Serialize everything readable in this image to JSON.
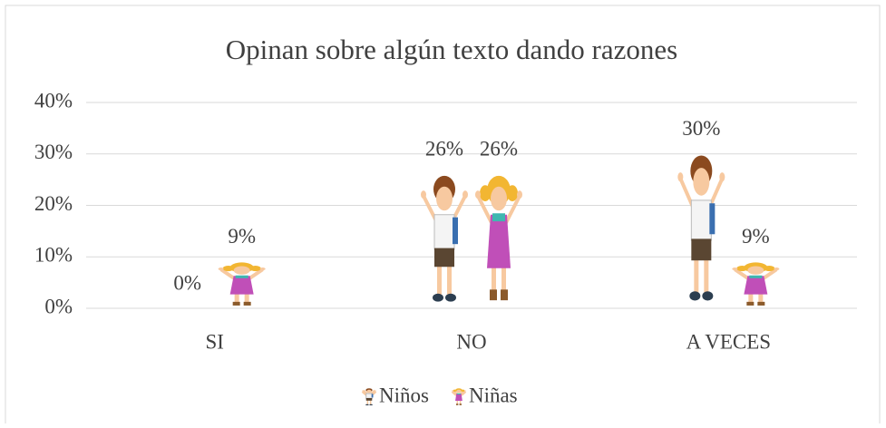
{
  "chart_data": {
    "type": "bar",
    "title": "Opinan sobre algún texto dando razones",
    "categories": [
      "SI",
      "NO",
      "A VECES"
    ],
    "series": [
      {
        "name": "Niños",
        "color": "#3a6fb0",
        "values": [
          0,
          26,
          30
        ],
        "value_labels": [
          "0%",
          "26%",
          "30%"
        ]
      },
      {
        "name": "Niñas",
        "color": "#c04fb8",
        "values": [
          9,
          26,
          9
        ],
        "value_labels": [
          "9%",
          "26%",
          "9%"
        ]
      }
    ],
    "ylim": [
      0,
      40
    ],
    "yticks": [
      {
        "value": 0,
        "label": "0%"
      },
      {
        "value": 10,
        "label": "10%"
      },
      {
        "value": 20,
        "label": "20%"
      },
      {
        "value": 30,
        "label": "30%"
      },
      {
        "value": 40,
        "label": "40%"
      }
    ],
    "grid": true,
    "legend": "bottom"
  }
}
